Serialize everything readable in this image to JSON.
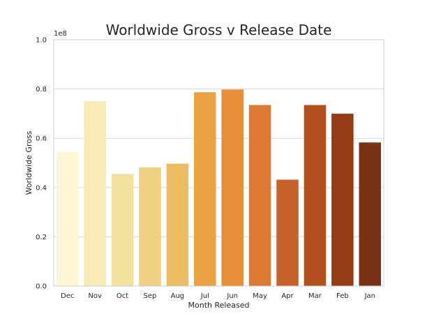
{
  "chart_data": {
    "type": "bar",
    "title": "Worldwide Gross v Release Date",
    "xlabel": "Month Released",
    "ylabel": "Worldwide Gross",
    "y_offset_label": "1e8",
    "categories": [
      "Dec",
      "Nov",
      "Oct",
      "Sep",
      "Aug",
      "Jul",
      "Jun",
      "May",
      "Apr",
      "Mar",
      "Feb",
      "Jan"
    ],
    "values": [
      0.545,
      0.75,
      0.455,
      0.482,
      0.497,
      0.787,
      0.798,
      0.735,
      0.432,
      0.735,
      0.7,
      0.583
    ],
    "colors": [
      "#fcf6d4",
      "#f8ebb5",
      "#f4e09f",
      "#efcf81",
      "#ecbd62",
      "#eba244",
      "#e98e38",
      "#dd7933",
      "#c8622c",
      "#b14f1f",
      "#953b16",
      "#7a3216"
    ],
    "ylim": [
      0,
      1.0
    ],
    "yticks": [
      "0.0",
      "0.2",
      "0.4",
      "0.6",
      "0.8",
      "1.0"
    ],
    "grid": "horizontal",
    "axes_color": "#cccccc",
    "grid_color": "#d9d9d9"
  }
}
